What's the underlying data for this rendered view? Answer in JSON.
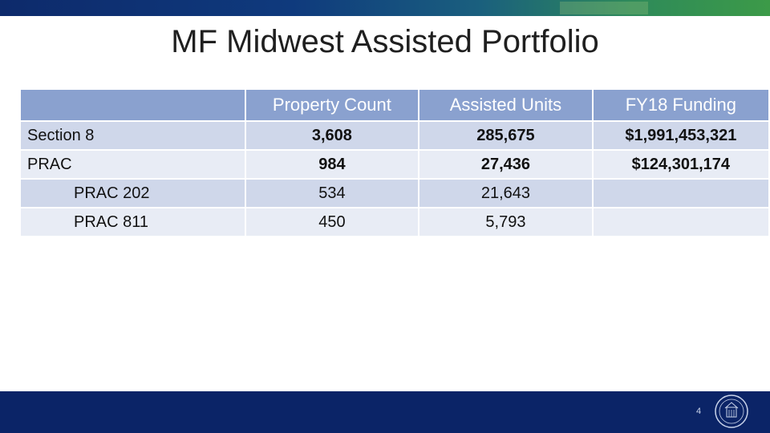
{
  "slide": {
    "title": "MF Midwest Assisted Portfolio",
    "page_number": "4"
  },
  "table": {
    "headers": [
      "",
      "Property Count",
      "Assisted Units",
      "FY18 Funding"
    ],
    "rows": [
      {
        "label": "Section 8",
        "property_count": "3,608",
        "assisted_units": "285,675",
        "fy18_funding": "$1,991,453,321"
      },
      {
        "label": "PRAC",
        "property_count": "984",
        "assisted_units": "27,436",
        "fy18_funding": "$124,301,174"
      },
      {
        "label": "PRAC 202",
        "property_count": "534",
        "assisted_units": "21,643",
        "fy18_funding": ""
      },
      {
        "label": "PRAC 811",
        "property_count": "450",
        "assisted_units": "5,793",
        "fy18_funding": ""
      }
    ]
  },
  "colors": {
    "header_fill": "#8aa1cf",
    "row_dark": "#cfd7ea",
    "row_light": "#e8ecf5",
    "footer": "#0b2467"
  },
  "icons": {
    "logo": "hud-seal-icon"
  }
}
